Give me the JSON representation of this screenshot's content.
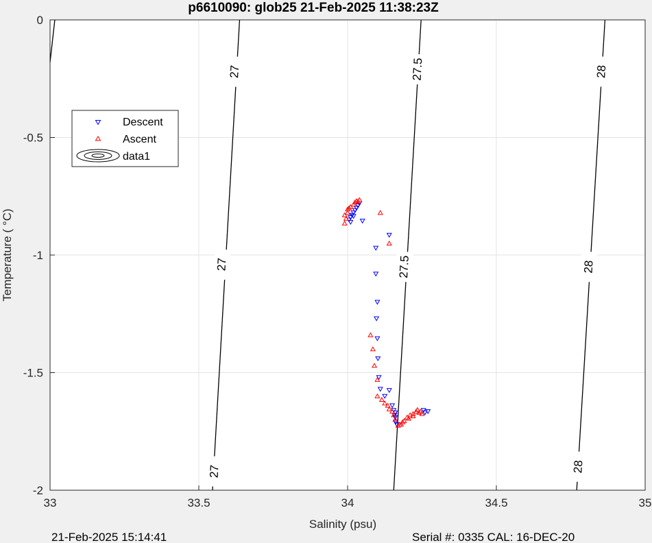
{
  "chart_data": {
    "type": "scatter",
    "title": "p6610090: glob25 21-Feb-2025 11:38:23Z",
    "xlabel": "Salinity (psu)",
    "ylabel": "Temperature (   °C)",
    "xlim": [
      33,
      35
    ],
    "ylim": [
      -2,
      0
    ],
    "xticks": [
      "33",
      "33.5",
      "34",
      "34.5",
      "35"
    ],
    "yticks": [
      "0",
      "-0.5",
      "-1",
      "-1.5",
      "-2"
    ],
    "grid": true,
    "legend_position": "top-left",
    "legend": [
      "Descent",
      "Ascent",
      "data1"
    ],
    "density_contours": [
      {
        "label": "27",
        "points": [
          [
            33.016,
            0
          ],
          [
            33.0,
            -0.18
          ]
        ],
        "label_positions": []
      },
      {
        "label": "27",
        "points": [
          [
            33.637,
            0
          ],
          [
            33.546,
            -2.0
          ]
        ],
        "label_positions": [
          [
            33.62,
            -0.22
          ],
          [
            33.577,
            -1.04
          ],
          [
            33.552,
            -1.92
          ]
        ]
      },
      {
        "label": "27.5",
        "points": [
          [
            34.247,
            0
          ],
          [
            34.155,
            -2.0
          ]
        ],
        "label_positions": [
          [
            34.235,
            -0.21
          ],
          [
            34.19,
            -1.05
          ]
        ]
      },
      {
        "label": "28",
        "points": [
          [
            34.865,
            0
          ],
          [
            34.77,
            -2.0
          ]
        ],
        "label_positions": [
          [
            34.853,
            -0.22
          ],
          [
            34.81,
            -1.05
          ],
          [
            34.775,
            -1.9
          ]
        ]
      }
    ],
    "series": [
      {
        "name": "Descent",
        "color": "#0000ff",
        "marker": "triangle-down",
        "points": [
          [
            34.04,
            -0.78
          ],
          [
            34.035,
            -0.79
          ],
          [
            34.03,
            -0.8
          ],
          [
            34.025,
            -0.81
          ],
          [
            34.02,
            -0.82
          ],
          [
            34.015,
            -0.83
          ],
          [
            34.01,
            -0.84
          ],
          [
            34.005,
            -0.85
          ],
          [
            34.01,
            -0.86
          ],
          [
            34.02,
            -0.835
          ],
          [
            34.03,
            -0.8
          ],
          [
            34.05,
            -0.855
          ],
          [
            34.14,
            -0.915
          ],
          [
            34.095,
            -0.97
          ],
          [
            34.095,
            -1.08
          ],
          [
            34.1,
            -1.2
          ],
          [
            34.097,
            -1.27
          ],
          [
            34.1,
            -1.355
          ],
          [
            34.102,
            -1.44
          ],
          [
            34.105,
            -1.52
          ],
          [
            34.11,
            -1.57
          ],
          [
            34.125,
            -1.6
          ],
          [
            34.14,
            -1.575
          ],
          [
            34.15,
            -1.64
          ],
          [
            34.155,
            -1.66
          ],
          [
            34.16,
            -1.67
          ],
          [
            34.16,
            -1.69
          ],
          [
            34.162,
            -1.71
          ],
          [
            34.165,
            -1.72
          ],
          [
            34.158,
            -1.68
          ],
          [
            34.26,
            -1.67
          ],
          [
            34.27,
            -1.665
          ],
          [
            34.255,
            -1.66
          ]
        ]
      },
      {
        "name": "Ascent",
        "color": "#ff0000",
        "marker": "triangle-up",
        "points": [
          [
            33.99,
            -0.865
          ],
          [
            33.995,
            -0.845
          ],
          [
            33.99,
            -0.83
          ],
          [
            34.0,
            -0.82
          ],
          [
            34.0,
            -0.805
          ],
          [
            34.005,
            -0.8
          ],
          [
            34.01,
            -0.795
          ],
          [
            34.02,
            -0.785
          ],
          [
            34.025,
            -0.775
          ],
          [
            34.03,
            -0.77
          ],
          [
            34.04,
            -0.765
          ],
          [
            34.035,
            -0.772
          ],
          [
            34.11,
            -0.82
          ],
          [
            34.14,
            -0.95
          ],
          [
            34.077,
            -1.34
          ],
          [
            34.085,
            -1.4
          ],
          [
            34.09,
            -1.47
          ],
          [
            34.1,
            -1.53
          ],
          [
            34.1,
            -1.6
          ],
          [
            34.115,
            -1.615
          ],
          [
            34.125,
            -1.63
          ],
          [
            34.135,
            -1.64
          ],
          [
            34.14,
            -1.655
          ],
          [
            34.15,
            -1.665
          ],
          [
            34.155,
            -1.68
          ],
          [
            34.16,
            -1.7
          ],
          [
            34.17,
            -1.725
          ],
          [
            34.18,
            -1.72
          ],
          [
            34.19,
            -1.705
          ],
          [
            34.2,
            -1.69
          ],
          [
            34.21,
            -1.68
          ],
          [
            34.22,
            -1.675
          ],
          [
            34.23,
            -1.665
          ],
          [
            34.235,
            -1.658
          ],
          [
            34.245,
            -1.665
          ],
          [
            34.25,
            -1.675
          ],
          [
            34.24,
            -1.67
          ],
          [
            34.22,
            -1.685
          ],
          [
            34.205,
            -1.695
          ],
          [
            34.185,
            -1.71
          ],
          [
            34.175,
            -1.72
          ]
        ]
      }
    ]
  },
  "footer": {
    "left": "21-Feb-2025 15:14:41",
    "right": "Serial #: 0335  CAL: 16-DEC-20"
  }
}
